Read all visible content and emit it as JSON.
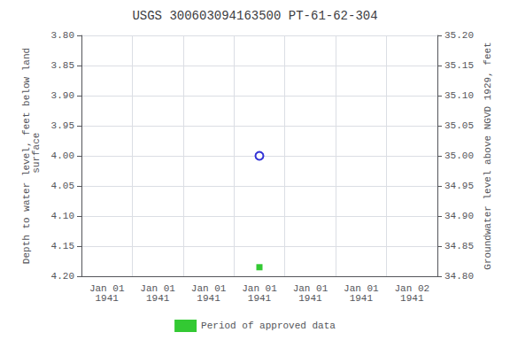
{
  "chart_data": {
    "type": "scatter",
    "title": "USGS 300603094163500 PT-61-62-304",
    "y_label": "Depth to water level, feet below land\n surface",
    "y2_label": "Groundwater level above NGVD 1929, feet",
    "categories": [
      "Jan 01\n1941",
      "Jan 01\n1941",
      "Jan 01\n1941",
      "Jan 01\n1941",
      "Jan 01\n1941",
      "Jan 01\n1941",
      "Jan 02\n1941"
    ],
    "series": [
      {
        "color": "#0000cc",
        "marker": "circle_open",
        "values": [
          null,
          null,
          null,
          4.0,
          null,
          null,
          null
        ]
      },
      {
        "name": "Period of approved data",
        "color": "#00bb00",
        "marker": "square",
        "values": [
          null,
          null,
          null,
          4.185,
          null,
          null,
          null
        ]
      }
    ],
    "ylim": [
      4.2,
      3.8
    ],
    "yticks": [
      {
        "value": 3.8,
        "label": "3.80"
      },
      {
        "value": 3.85,
        "label": "3.85"
      },
      {
        "value": 3.9,
        "label": "3.90"
      },
      {
        "value": 3.95,
        "label": "3.95"
      },
      {
        "value": 4.0,
        "label": "4.00"
      },
      {
        "value": 4.05,
        "label": "4.05"
      },
      {
        "value": 4.1,
        "label": "4.10"
      },
      {
        "value": 4.15,
        "label": "4.15"
      },
      {
        "value": 4.2,
        "label": "4.20"
      }
    ],
    "y2lim": [
      34.8,
      35.2
    ],
    "y2ticks": [
      {
        "value": 35.2,
        "label": "35.20"
      },
      {
        "value": 35.15,
        "label": "35.15"
      },
      {
        "value": 35.1,
        "label": "35.10"
      },
      {
        "value": 35.05,
        "label": "35.05"
      },
      {
        "value": 35.0,
        "label": "35.00"
      },
      {
        "value": 34.95,
        "label": "34.95"
      },
      {
        "value": 34.9,
        "label": "34.90"
      },
      {
        "value": 34.85,
        "label": "34.85"
      },
      {
        "value": 34.8,
        "label": "34.80"
      }
    ],
    "grid": true,
    "legend": "bottom"
  }
}
